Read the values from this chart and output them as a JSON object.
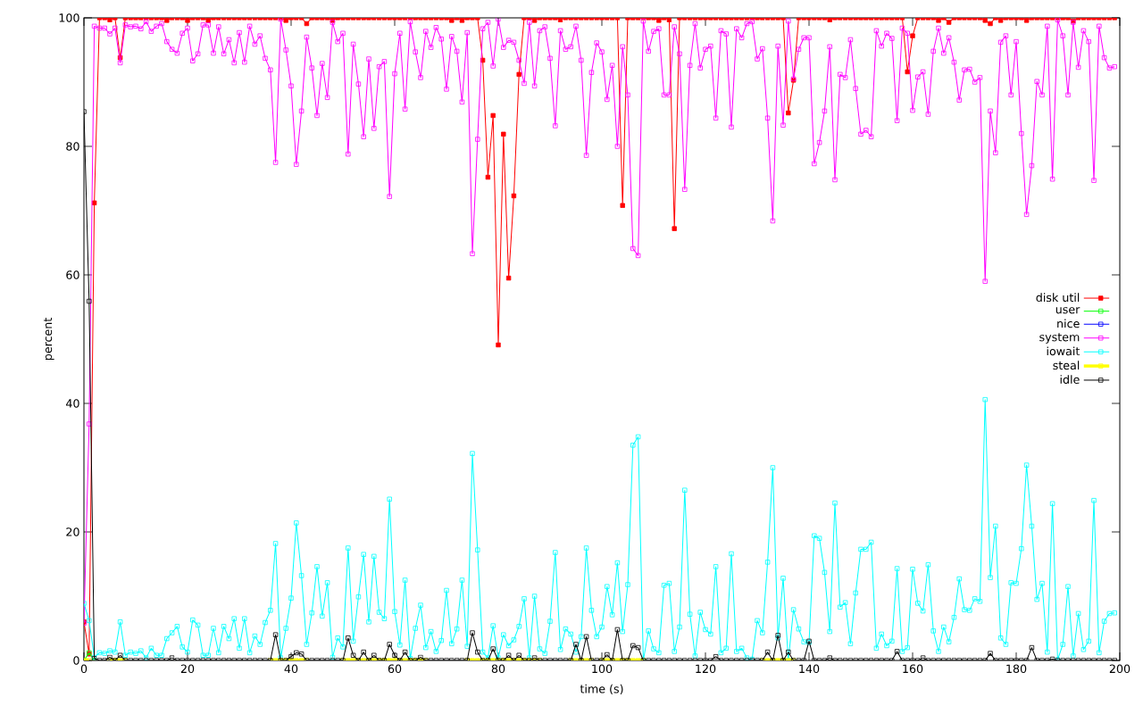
{
  "chart_data": {
    "type": "line",
    "xlabel": "time (s)",
    "ylabel": "percent",
    "xlim": [
      0,
      200
    ],
    "ylim": [
      0,
      100
    ],
    "xticks": [
      0,
      20,
      40,
      60,
      80,
      100,
      120,
      140,
      160,
      180,
      200
    ],
    "yticks": [
      0,
      20,
      40,
      60,
      80,
      100
    ],
    "legend": "right",
    "marker": "square",
    "x": [
      0,
      1,
      2,
      3,
      4,
      5,
      6,
      7,
      8,
      9,
      10,
      11,
      12,
      13,
      14,
      15,
      16,
      17,
      18,
      19,
      20,
      21,
      22,
      23,
      24,
      25,
      26,
      27,
      28,
      29,
      30,
      31,
      32,
      33,
      34,
      35,
      36,
      37,
      38,
      39,
      40,
      41,
      42,
      43,
      44,
      45,
      46,
      47,
      48,
      49,
      50,
      51,
      52,
      53,
      54,
      55,
      56,
      57,
      58,
      59,
      60,
      61,
      62,
      63,
      64,
      65,
      66,
      67,
      68,
      69,
      70,
      71,
      72,
      73,
      74,
      75,
      76,
      77,
      78,
      79,
      80,
      81,
      82,
      83,
      84,
      85,
      86,
      87,
      88,
      89,
      90,
      91,
      92,
      93,
      94,
      95,
      96,
      97,
      98,
      99,
      100,
      101,
      102,
      103,
      104,
      105,
      106,
      107,
      108,
      109,
      110,
      111,
      112,
      113,
      114,
      115,
      116,
      117,
      118,
      119,
      120,
      121,
      122,
      123,
      124,
      125,
      126,
      127,
      128,
      129,
      130,
      131,
      132,
      133,
      134,
      135,
      136,
      137,
      138,
      139,
      140,
      141,
      142,
      143,
      144,
      145,
      146,
      147,
      148,
      149,
      150,
      151,
      152,
      153,
      154,
      155,
      156,
      157,
      158,
      159,
      160,
      161,
      162,
      163,
      164,
      165,
      166,
      167,
      168,
      169,
      170,
      171,
      172,
      173,
      174,
      175,
      176,
      177,
      178,
      179,
      180,
      181,
      182,
      183,
      184,
      185,
      186,
      187,
      188,
      189,
      190,
      191,
      192,
      193,
      194,
      195,
      196,
      197,
      198,
      199
    ],
    "series": [
      {
        "name": "disk util",
        "color": "#ff0000",
        "values": [
          6.0,
          1.0,
          71.2,
          100,
          100,
          99.7,
          100,
          93.8,
          100,
          100,
          100,
          100,
          100,
          100,
          100,
          100,
          99.6,
          100,
          100,
          100,
          99.6,
          100,
          100,
          100,
          99.6,
          100,
          100,
          100,
          100,
          100,
          100,
          100,
          100,
          100,
          100,
          100,
          100,
          100,
          100,
          99.6,
          100,
          100,
          100,
          99.1,
          100,
          100,
          100,
          100,
          99.6,
          100,
          100,
          100,
          100,
          100,
          100,
          100,
          100,
          100,
          100,
          100,
          100,
          100,
          100,
          100,
          100,
          100,
          100,
          100,
          100,
          100,
          100,
          99.6,
          100,
          99.6,
          100,
          100,
          100,
          93.4,
          75.2,
          84.8,
          49.1,
          81.9,
          59.5,
          72.3,
          91.2,
          100,
          100,
          99.6,
          100,
          100,
          100,
          100,
          99.7,
          100,
          100,
          100,
          100,
          100,
          100,
          100,
          100,
          100,
          100,
          100,
          70.8,
          100,
          100,
          100,
          100,
          100,
          100,
          99.6,
          100,
          99.7,
          67.2,
          100,
          100,
          100,
          100,
          100,
          100,
          100,
          100,
          100,
          100,
          100,
          100,
          100,
          100,
          100,
          100,
          100,
          100,
          100,
          100,
          100,
          85.2,
          90.3,
          100,
          100,
          100,
          100,
          100,
          100,
          99.7,
          100,
          100,
          100,
          100,
          100,
          100,
          100,
          100,
          100,
          100,
          100,
          100,
          100,
          100,
          91.6,
          97.2,
          100,
          100,
          100,
          100,
          99.6,
          100,
          99.3,
          100,
          100,
          100,
          100,
          100,
          100,
          99.6,
          99.1,
          100,
          99.6,
          100,
          100,
          100,
          100,
          99.6,
          100,
          100,
          100,
          100,
          100,
          100,
          100,
          100,
          99.5,
          100,
          100,
          100,
          100,
          100,
          100,
          100,
          100
        ]
      },
      {
        "name": "user",
        "color": "#00ff00",
        "x": [
          0,
          1,
          2
        ],
        "values": [
          0,
          1.2,
          0
        ]
      },
      {
        "name": "nice",
        "color": "#0000ff",
        "values": [
          null,
          null,
          null,
          null,
          null,
          null,
          null,
          null,
          null,
          null,
          null,
          null,
          null,
          null,
          null,
          null,
          null,
          null,
          null,
          null,
          null,
          null,
          null,
          null,
          null,
          null,
          null,
          null,
          null,
          null,
          null,
          null,
          null,
          null,
          null,
          null,
          null,
          null,
          null,
          null,
          null,
          null,
          null,
          null,
          null,
          null,
          null,
          null,
          null,
          null,
          null,
          null,
          null,
          null,
          null,
          null,
          null,
          null,
          null,
          null,
          null,
          null,
          null,
          null,
          null,
          null,
          null,
          null,
          null,
          null,
          null,
          null,
          null,
          null,
          null,
          null,
          null,
          null,
          null,
          null,
          null,
          null,
          null,
          null,
          null,
          null,
          null,
          null,
          null,
          null,
          null,
          null,
          null,
          null,
          null,
          null,
          null,
          null,
          null,
          null,
          null,
          null,
          null,
          null,
          null,
          null,
          null,
          null,
          null,
          null,
          null,
          null,
          null,
          null,
          null,
          null,
          null,
          null,
          null,
          null,
          null,
          null,
          null,
          null,
          null,
          null,
          null,
          null,
          null,
          null,
          null,
          null,
          null,
          null,
          null,
          null,
          null,
          null,
          null,
          null,
          null,
          null,
          null,
          null,
          null,
          null,
          null,
          null,
          null,
          null,
          null,
          null,
          null,
          null,
          null,
          null,
          null,
          null,
          null,
          null,
          null,
          null,
          null,
          null,
          null,
          null,
          null,
          null,
          null,
          null,
          null,
          null,
          null,
          null,
          null,
          null,
          null,
          null,
          null,
          null,
          null,
          null,
          null,
          null,
          null,
          null,
          null,
          null,
          null,
          null,
          null,
          null,
          null,
          null,
          null,
          null,
          null,
          null,
          null,
          null
        ]
      },
      {
        "name": "system",
        "color": "#ff00ff",
        "values": [
          5.8,
          36.8,
          98.7,
          98.4,
          98.4,
          97.5,
          98.4,
          93.0,
          98.9,
          98.6,
          98.7,
          98.3,
          99.4,
          97.9,
          98.7,
          99.1,
          96.3,
          95.1,
          94.5,
          97.6,
          98.4,
          93.3,
          94.4,
          98.9,
          98.9,
          94.5,
          98.6,
          94.4,
          96.6,
          93.0,
          97.7,
          93.1,
          98.7,
          95.9,
          97.2,
          93.7,
          91.9,
          77.5,
          99.8,
          95.0,
          89.4,
          77.2,
          85.5,
          97.0,
          92.2,
          84.8,
          92.9,
          87.6,
          99.3,
          96.3,
          97.6,
          78.8,
          95.9,
          89.7,
          81.5,
          93.6,
          82.8,
          92.4,
          93.2,
          72.2,
          91.3,
          97.6,
          85.8,
          99.4,
          94.7,
          90.7,
          97.9,
          95.4,
          98.5,
          96.7,
          88.9,
          97.1,
          94.8,
          86.9,
          97.7,
          63.3,
          81.1,
          98.3,
          99.3,
          92.5,
          99.8,
          95.4,
          96.5,
          96.2,
          93.4,
          89.8,
          99.3,
          89.4,
          98.0,
          98.6,
          93.7,
          83.2,
          98.0,
          95.1,
          95.5,
          98.7,
          93.4,
          78.6,
          91.5,
          96.1,
          94.7,
          87.3,
          92.6,
          80.0,
          95.5,
          88.0,
          64.1,
          63.0,
          99.5,
          94.8,
          97.9,
          98.3,
          88.0,
          88.0,
          98.6,
          94.4,
          73.3,
          92.6,
          99.1,
          92.2,
          95.1,
          95.6,
          84.4,
          98.0,
          97.5,
          83.0,
          98.3,
          96.9,
          99.1,
          99.4,
          93.6,
          95.2,
          84.4,
          68.4,
          95.6,
          83.3,
          99.5,
          90.5,
          95.1,
          96.9,
          96.9,
          77.3,
          80.6,
          85.5,
          95.5,
          74.8,
          91.2,
          90.7,
          96.6,
          89.0,
          81.9,
          82.5,
          81.5,
          98.0,
          95.6,
          97.6,
          96.8,
          84.0,
          98.4,
          97.6,
          85.6,
          90.8,
          91.6,
          85.0,
          94.8,
          98.4,
          94.5,
          96.9,
          93.1,
          87.2,
          91.9,
          92.0,
          90.0,
          90.7,
          59.0,
          85.5,
          79.0,
          96.2,
          97.2,
          88.0,
          96.3,
          82.0,
          69.4,
          77.0,
          90.1,
          88.0,
          98.7,
          74.9,
          99.7,
          97.2,
          88.0,
          99.3,
          92.3,
          98.0,
          96.3,
          74.7,
          98.7,
          93.8,
          92.2,
          92.4
        ]
      },
      {
        "name": "iowait",
        "color": "#00ffff",
        "values": [
          8.9,
          6.2,
          0.5,
          1.2,
          1.1,
          1.5,
          1.3,
          6.0,
          0.8,
          1.3,
          1.1,
          1.5,
          0.4,
          1.9,
          0.8,
          0.8,
          3.4,
          4.3,
          5.3,
          2.1,
          1.3,
          6.3,
          5.5,
          0.8,
          0.8,
          5.0,
          1.2,
          5.3,
          3.4,
          6.5,
          1.9,
          6.5,
          1.2,
          3.8,
          2.5,
          5.9,
          7.8,
          18.2,
          0.4,
          5.0,
          9.7,
          21.4,
          13.2,
          2.5,
          7.4,
          14.6,
          6.9,
          12.1,
          0.5,
          3.5,
          2.1,
          17.5,
          3.0,
          9.9,
          16.5,
          6.0,
          16.2,
          7.5,
          6.5,
          25.1,
          7.6,
          2.4,
          12.5,
          0.3,
          5.0,
          8.6,
          2.0,
          4.5,
          1.4,
          3.1,
          10.9,
          2.6,
          4.9,
          12.5,
          2.2,
          32.2,
          17.2,
          1.3,
          0.4,
          5.4,
          0.4,
          4.0,
          2.3,
          3.2,
          5.3,
          9.6,
          0.4,
          10.0,
          1.8,
          1.1,
          6.1,
          16.8,
          1.7,
          4.9,
          4.1,
          1.3,
          3.7,
          17.5,
          7.8,
          3.7,
          5.2,
          11.5,
          7.1,
          15.2,
          4.5,
          11.8,
          33.5,
          34.8,
          0.0,
          4.6,
          1.8,
          1.2,
          11.7,
          12.0,
          1.4,
          5.2,
          26.5,
          7.2,
          0.7,
          7.5,
          4.8,
          4.1,
          14.6,
          1.2,
          1.9,
          16.6,
          1.4,
          1.9,
          0.4,
          0.2,
          6.2,
          4.3,
          15.3,
          30.0,
          3.5,
          12.8,
          0.0,
          7.9,
          4.9,
          2.9,
          2.8,
          19.4,
          19.0,
          13.7,
          4.5,
          24.5,
          8.3,
          9.0,
          2.6,
          10.5,
          17.3,
          17.3,
          18.4,
          1.9,
          4.1,
          2.3,
          3.0,
          14.3,
          1.4,
          2.0,
          14.2,
          8.9,
          7.7,
          14.9,
          4.6,
          1.4,
          5.2,
          2.9,
          6.7,
          12.7,
          7.9,
          7.8,
          9.6,
          9.2,
          40.6,
          12.9,
          20.9,
          3.5,
          2.5,
          12.1,
          12.0,
          17.4,
          30.4,
          20.9,
          9.5,
          12.0,
          1.3,
          24.4,
          0.1,
          2.5,
          11.5,
          0.7,
          7.3,
          1.7,
          3.0,
          24.9,
          1.2,
          6.1,
          7.3,
          7.4
        ]
      },
      {
        "name": "steal",
        "color": "#ffff00",
        "values": [
          0,
          0,
          null,
          null,
          null,
          0,
          0,
          0,
          0,
          null,
          null,
          null,
          null,
          null,
          null,
          null,
          null,
          null,
          null,
          null,
          null,
          null,
          null,
          null,
          null,
          null,
          null,
          null,
          null,
          null,
          null,
          null,
          null,
          null,
          null,
          null,
          0,
          0,
          0,
          0,
          0,
          0,
          0,
          0,
          null,
          null,
          null,
          null,
          null,
          null,
          0,
          0,
          0,
          0,
          0,
          0,
          0,
          0,
          0,
          0,
          0,
          0,
          0,
          0,
          0,
          0,
          0,
          null,
          null,
          null,
          null,
          null,
          null,
          null,
          0,
          0,
          0,
          0,
          0,
          0,
          0,
          0,
          0,
          0,
          0,
          0,
          0,
          0,
          0,
          null,
          null,
          null,
          null,
          null,
          0,
          0,
          0,
          0,
          0,
          null,
          0,
          0,
          0,
          0,
          0,
          0,
          0,
          0,
          0,
          null,
          null,
          null,
          null,
          null,
          null,
          null,
          null,
          null,
          null,
          null,
          null,
          null,
          null,
          null,
          null,
          null,
          null,
          null,
          null,
          null,
          null,
          0,
          0,
          0,
          0,
          0,
          0,
          0,
          null,
          null,
          null,
          null,
          null,
          null,
          null,
          null,
          null,
          null,
          null,
          null,
          null,
          null,
          null,
          null,
          null,
          null,
          null,
          null,
          null,
          null,
          null,
          null,
          null,
          null,
          null,
          null,
          null,
          null,
          null,
          null,
          null,
          null,
          null,
          null,
          null,
          null,
          null,
          null,
          null,
          null,
          null,
          null,
          null,
          null,
          null,
          null,
          null,
          null,
          null,
          null,
          null,
          null,
          null,
          null,
          null,
          null,
          null,
          null,
          null,
          null
        ]
      },
      {
        "name": "idle",
        "color": "#000000",
        "values": [
          85.4,
          55.9,
          0.3,
          0,
          0,
          0.5,
          0,
          0.8,
          0,
          0,
          0,
          0,
          0,
          0,
          0,
          0,
          0,
          0.4,
          0,
          0,
          0,
          0,
          0,
          0,
          0,
          0,
          0,
          0,
          0,
          0,
          0,
          0,
          0,
          0,
          0,
          0,
          0,
          4.0,
          0,
          0,
          0.6,
          1.2,
          1.0,
          0,
          0,
          0,
          0,
          0,
          0,
          0,
          0,
          3.5,
          0.8,
          0,
          1.3,
          0,
          0.8,
          0,
          0,
          2.5,
          0.8,
          0,
          1.3,
          0,
          0,
          0.5,
          0,
          0,
          0,
          0,
          0,
          0,
          0,
          0,
          0,
          4.3,
          1.3,
          0,
          0,
          1.8,
          0,
          0,
          0.8,
          0,
          0.8,
          0,
          0,
          0.4,
          0,
          0,
          0,
          0,
          0,
          0,
          0,
          2.5,
          0,
          3.7,
          0,
          0,
          0,
          0.9,
          0,
          4.8,
          0,
          0,
          2.3,
          2.0,
          0,
          0,
          0,
          0,
          0,
          0,
          0,
          0,
          0,
          0,
          0,
          0,
          0,
          0,
          0.6,
          0,
          0,
          0,
          0,
          0,
          0,
          0,
          0,
          0,
          1.3,
          0,
          3.9,
          0,
          1.3,
          0,
          0,
          0,
          3.0,
          0,
          0,
          0,
          0.4,
          0,
          0,
          0,
          0,
          0,
          0,
          0,
          0,
          0,
          0,
          0,
          0,
          1.4,
          0,
          0,
          0,
          0,
          0.4,
          0,
          0,
          0,
          0,
          0,
          0,
          0,
          0,
          0,
          0,
          0,
          0,
          1.1,
          0,
          0,
          0,
          0,
          0,
          0,
          0,
          2.0,
          0,
          0,
          0,
          0.2,
          0,
          0,
          0,
          0,
          0,
          0,
          0,
          0,
          0,
          0,
          0,
          0
        ]
      }
    ]
  }
}
